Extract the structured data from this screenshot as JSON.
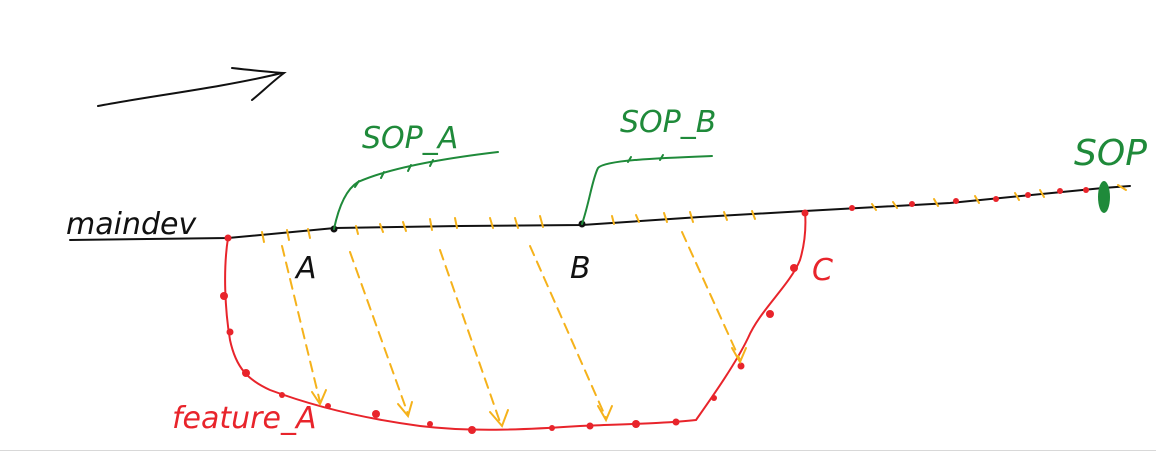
{
  "labels": {
    "maindev": "maindev",
    "sop_a": "SOP_A",
    "sop_b": "SOP_B",
    "sop": "SOP",
    "point_a": "A",
    "point_b": "B",
    "point_c": "C",
    "feature_a": "feature_A"
  },
  "colors": {
    "main_line": "#111111",
    "feature_branch": "#e8242b",
    "sop_branch": "#1f8a3a",
    "merge_arrows": "#f5b21b",
    "background": "#ffffff"
  }
}
